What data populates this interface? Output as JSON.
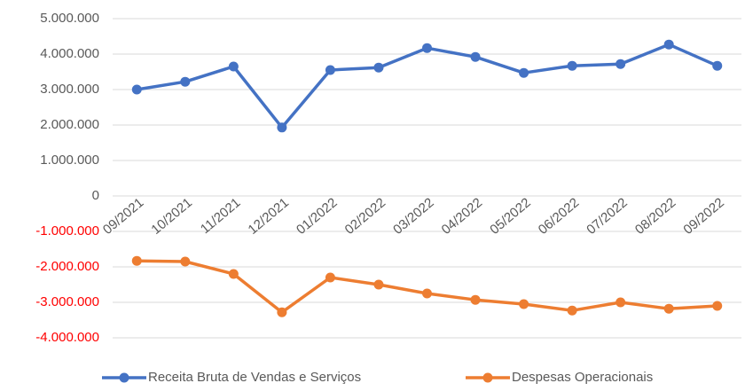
{
  "chart_data": {
    "type": "line",
    "categories": [
      "09/2021",
      "10/2021",
      "11/2021",
      "12/2021",
      "01/2022",
      "02/2022",
      "03/2022",
      "04/2022",
      "05/2022",
      "06/2022",
      "07/2022",
      "08/2022",
      "09/2022"
    ],
    "series": [
      {
        "name": "Receita Bruta de Vendas e Serviços",
        "color": "#4472c4",
        "values": [
          3000000,
          3220000,
          3650000,
          1930000,
          3550000,
          3620000,
          4170000,
          3920000,
          3470000,
          3670000,
          3720000,
          4270000,
          3670000
        ]
      },
      {
        "name": "Despesas Operacionais",
        "color": "#ed7d31",
        "values": [
          -1830000,
          -1850000,
          -2200000,
          -3280000,
          -2300000,
          -2500000,
          -2750000,
          -2930000,
          -3050000,
          -3230000,
          -3000000,
          -3180000,
          -3100000
        ]
      }
    ],
    "ylim": [
      -4000000,
      5000000
    ],
    "yticks": [
      {
        "value": -4000000,
        "label": "-4.000.000"
      },
      {
        "value": -3000000,
        "label": "-3.000.000"
      },
      {
        "value": -2000000,
        "label": "-2.000.000"
      },
      {
        "value": -1000000,
        "label": "-1.000.000"
      },
      0,
      {
        "value": 1000000,
        "label": "1.000.000"
      },
      {
        "value": 2000000,
        "label": "2.000.000"
      },
      {
        "value": 3000000,
        "label": "3.000.000"
      },
      {
        "value": 4000000,
        "label": "4.000.000"
      },
      {
        "value": 5000000,
        "label": "5.000.000"
      }
    ],
    "grid": true,
    "negative_tick_color": "#ff0000",
    "legend": "bottom"
  }
}
